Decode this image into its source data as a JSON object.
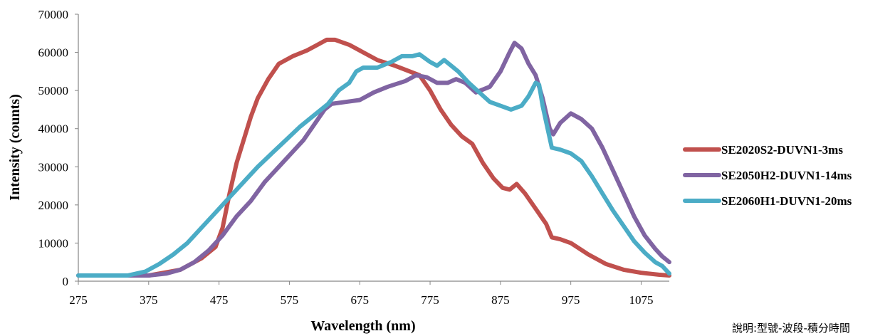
{
  "chart_data": {
    "type": "line",
    "title": "",
    "xlabel": "Wavelength (nm)",
    "ylabel": "Intensity (counts)",
    "xlim": [
      275,
      1115
    ],
    "ylim": [
      0,
      70000
    ],
    "x_ticks": [
      275,
      375,
      475,
      575,
      675,
      775,
      875,
      975,
      1075
    ],
    "y_ticks": [
      0,
      10000,
      20000,
      30000,
      40000,
      50000,
      60000,
      70000
    ],
    "grid": false,
    "legend_position": "right",
    "series": [
      {
        "name": "SE2020S2-DUVN1-3ms",
        "color": "#c0504d",
        "points": [
          [
            275,
            1500
          ],
          [
            375,
            1500
          ],
          [
            420,
            3000
          ],
          [
            450,
            6000
          ],
          [
            470,
            9000
          ],
          [
            480,
            14000
          ],
          [
            490,
            23000
          ],
          [
            500,
            31000
          ],
          [
            510,
            37000
          ],
          [
            520,
            43000
          ],
          [
            530,
            48000
          ],
          [
            545,
            53000
          ],
          [
            560,
            57000
          ],
          [
            580,
            59000
          ],
          [
            600,
            60500
          ],
          [
            615,
            62000
          ],
          [
            628,
            63300
          ],
          [
            640,
            63300
          ],
          [
            660,
            62000
          ],
          [
            680,
            60000
          ],
          [
            700,
            58000
          ],
          [
            725,
            56500
          ],
          [
            760,
            54000
          ],
          [
            775,
            50000
          ],
          [
            790,
            45000
          ],
          [
            805,
            41000
          ],
          [
            820,
            38000
          ],
          [
            835,
            36000
          ],
          [
            850,
            31000
          ],
          [
            865,
            27000
          ],
          [
            878,
            24500
          ],
          [
            888,
            24000
          ],
          [
            898,
            25500
          ],
          [
            910,
            23000
          ],
          [
            925,
            19000
          ],
          [
            940,
            15000
          ],
          [
            948,
            11500
          ],
          [
            960,
            11000
          ],
          [
            975,
            10000
          ],
          [
            1000,
            7000
          ],
          [
            1025,
            4500
          ],
          [
            1050,
            3000
          ],
          [
            1075,
            2200
          ],
          [
            1100,
            1700
          ],
          [
            1115,
            1500
          ]
        ]
      },
      {
        "name": "SE2050H2-DUVN1-14ms",
        "color": "#8064a2",
        "points": [
          [
            275,
            1500
          ],
          [
            375,
            1500
          ],
          [
            400,
            2000
          ],
          [
            420,
            3000
          ],
          [
            440,
            5000
          ],
          [
            460,
            8000
          ],
          [
            480,
            12000
          ],
          [
            500,
            17000
          ],
          [
            520,
            21000
          ],
          [
            540,
            26000
          ],
          [
            560,
            30000
          ],
          [
            580,
            34000
          ],
          [
            595,
            37000
          ],
          [
            610,
            41000
          ],
          [
            625,
            45000
          ],
          [
            635,
            46500
          ],
          [
            655,
            47000
          ],
          [
            675,
            47500
          ],
          [
            695,
            49500
          ],
          [
            715,
            51000
          ],
          [
            740,
            52500
          ],
          [
            755,
            54000
          ],
          [
            770,
            53500
          ],
          [
            785,
            52000
          ],
          [
            800,
            52000
          ],
          [
            812,
            53000
          ],
          [
            825,
            52000
          ],
          [
            840,
            49500
          ],
          [
            860,
            51000
          ],
          [
            875,
            55000
          ],
          [
            888,
            60000
          ],
          [
            895,
            62500
          ],
          [
            905,
            61000
          ],
          [
            915,
            57000
          ],
          [
            925,
            54000
          ],
          [
            935,
            48000
          ],
          [
            945,
            40000
          ],
          [
            950,
            38500
          ],
          [
            960,
            41500
          ],
          [
            975,
            44000
          ],
          [
            990,
            42500
          ],
          [
            1005,
            40000
          ],
          [
            1020,
            35000
          ],
          [
            1035,
            29000
          ],
          [
            1050,
            23000
          ],
          [
            1065,
            17000
          ],
          [
            1080,
            12000
          ],
          [
            1095,
            8500
          ],
          [
            1105,
            6500
          ],
          [
            1115,
            5000
          ]
        ]
      },
      {
        "name": "SE2060H1-DUVN1-20ms",
        "color": "#4bacc6",
        "points": [
          [
            275,
            1500
          ],
          [
            345,
            1500
          ],
          [
            370,
            2500
          ],
          [
            390,
            4500
          ],
          [
            410,
            7000
          ],
          [
            430,
            10000
          ],
          [
            450,
            14000
          ],
          [
            470,
            18000
          ],
          [
            490,
            22000
          ],
          [
            510,
            26000
          ],
          [
            530,
            30000
          ],
          [
            550,
            33500
          ],
          [
            570,
            37000
          ],
          [
            590,
            40500
          ],
          [
            610,
            43500
          ],
          [
            630,
            46500
          ],
          [
            645,
            50000
          ],
          [
            660,
            52000
          ],
          [
            670,
            55000
          ],
          [
            680,
            56000
          ],
          [
            700,
            56000
          ],
          [
            720,
            57500
          ],
          [
            735,
            59000
          ],
          [
            750,
            59000
          ],
          [
            760,
            59500
          ],
          [
            775,
            57500
          ],
          [
            785,
            56500
          ],
          [
            795,
            58000
          ],
          [
            805,
            56500
          ],
          [
            815,
            55000
          ],
          [
            830,
            52000
          ],
          [
            845,
            49500
          ],
          [
            860,
            47000
          ],
          [
            875,
            46000
          ],
          [
            890,
            45000
          ],
          [
            905,
            46000
          ],
          [
            915,
            48500
          ],
          [
            925,
            52000
          ],
          [
            930,
            51500
          ],
          [
            935,
            46000
          ],
          [
            942,
            40000
          ],
          [
            948,
            35000
          ],
          [
            960,
            34500
          ],
          [
            975,
            33500
          ],
          [
            990,
            31500
          ],
          [
            1005,
            27500
          ],
          [
            1020,
            23000
          ],
          [
            1035,
            18500
          ],
          [
            1050,
            14500
          ],
          [
            1065,
            10500
          ],
          [
            1080,
            7500
          ],
          [
            1095,
            5000
          ],
          [
            1105,
            4000
          ],
          [
            1115,
            2000
          ]
        ]
      }
    ]
  },
  "note": "說明:型號-波段-積分時間"
}
